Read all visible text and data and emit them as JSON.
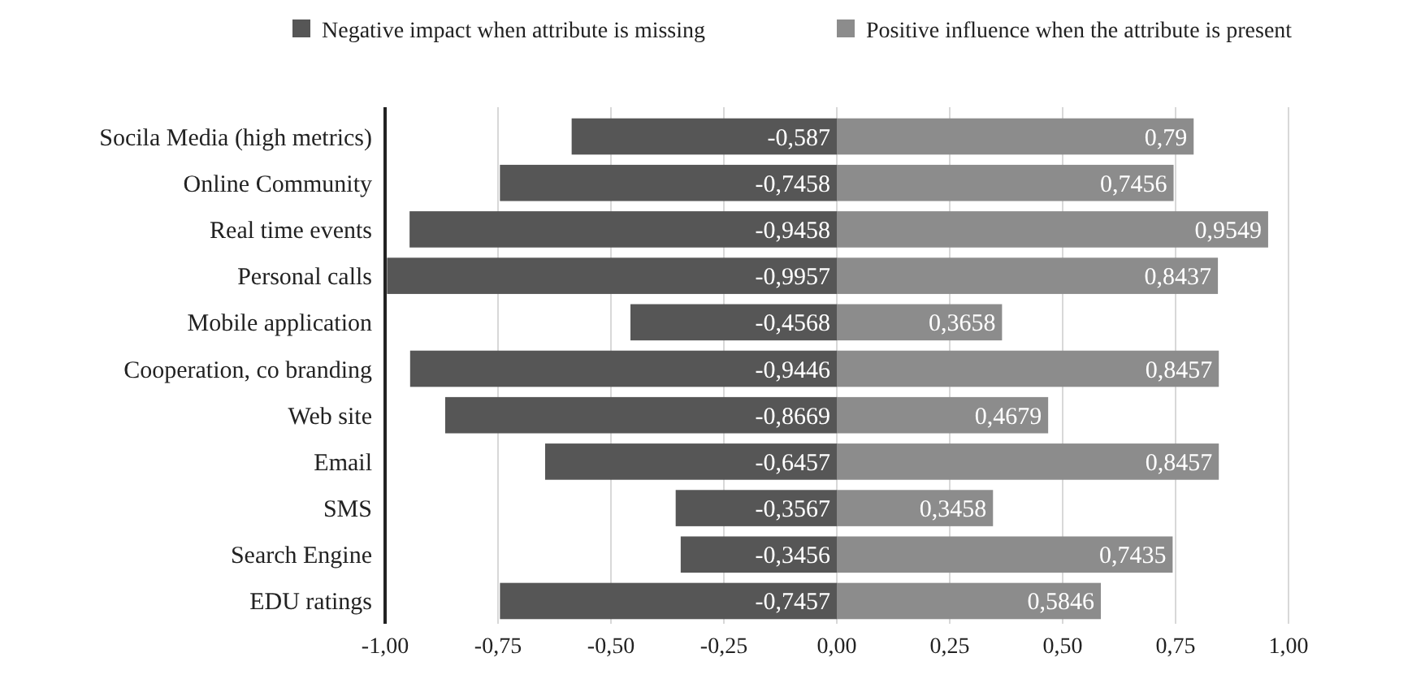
{
  "chart_data": {
    "type": "bar",
    "orientation": "horizontal",
    "stacked": true,
    "legend": "top right",
    "grid": "x",
    "categories": [
      "Socila Media (high metrics)",
      "Online Community",
      "Real time events",
      "Personal calls",
      "Mobile application",
      "Cooperation, co branding",
      "Web site",
      "Email",
      "SMS",
      "Search Engine",
      "EDU ratings"
    ],
    "series": [
      {
        "name": "Negative impact when attribute is missing",
        "color": "#565656",
        "values": [
          -0.587,
          -0.7458,
          -0.9458,
          -0.9957,
          -0.4568,
          -0.9446,
          -0.8669,
          -0.6457,
          -0.3567,
          -0.3456,
          -0.7457
        ],
        "value_labels": [
          "-0,587",
          "-0,7458",
          "-0,9458",
          "-0,9957",
          "-0,4568",
          "-0,9446",
          "-0,8669",
          "-0,6457",
          "-0,3567",
          "-0,3456",
          "-0,7457"
        ]
      },
      {
        "name": "Positive influence when the attribute is present",
        "color": "#8c8c8c",
        "values": [
          0.79,
          0.7456,
          0.9549,
          0.8437,
          0.3658,
          0.8457,
          0.4679,
          0.8457,
          0.3458,
          0.7435,
          0.5846
        ],
        "value_labels": [
          "0,79",
          "0,7456",
          "0,9549",
          "0,8437",
          "0,3658",
          "0,8457",
          "0,4679",
          "0,8457",
          "0,3458",
          "0,7435",
          "0,5846"
        ]
      }
    ],
    "xlim": [
      -1,
      1
    ],
    "xticks": [
      {
        "value": -1,
        "label": "-1,00"
      },
      {
        "value": -0.75,
        "label": "-0,75"
      },
      {
        "value": -0.5,
        "label": "-0,50"
      },
      {
        "value": -0.25,
        "label": "-0,25"
      },
      {
        "value": 0,
        "label": "0,00"
      },
      {
        "value": 0.25,
        "label": "0,25"
      },
      {
        "value": 0.5,
        "label": "0,50"
      },
      {
        "value": 0.75,
        "label": "0,75"
      },
      {
        "value": 1,
        "label": "1,00"
      }
    ]
  }
}
